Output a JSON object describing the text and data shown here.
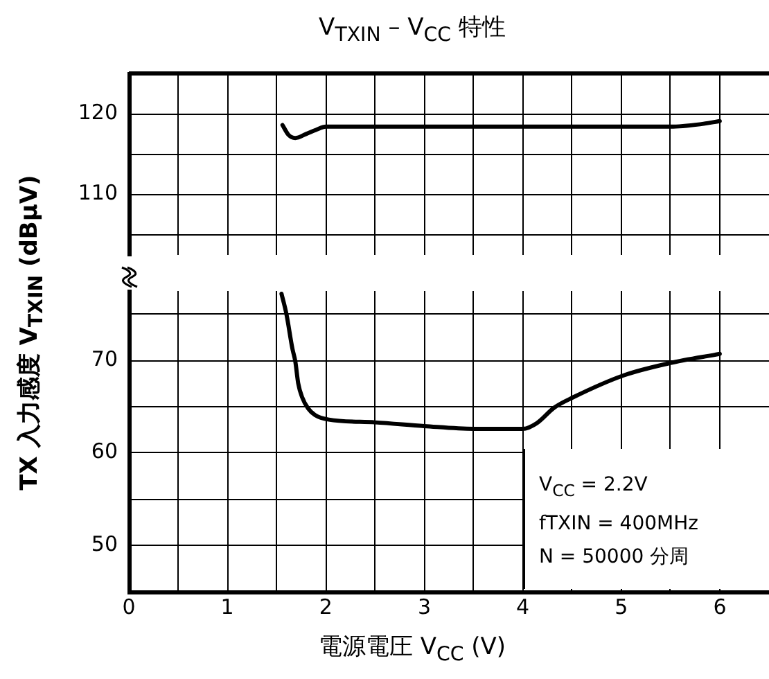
{
  "chart_data": [
    {
      "type": "line",
      "title": "V$_{TXIN}$ – V$_{CC}$ 特性",
      "ylabel": "TX 入力感度 V$_{TXIN}$ (dBμV)",
      "xlim": [
        0,
        6.5
      ],
      "xticks": [
        0,
        {
          "value": 0.5,
          "label": null
        },
        1,
        {
          "value": 1.5,
          "label": null
        },
        2,
        {
          "value": 2.5,
          "label": null
        },
        3,
        {
          "value": 3.5,
          "label": null
        },
        4,
        {
          "value": 4.5,
          "label": null
        },
        5,
        {
          "value": 5.5,
          "label": null
        },
        6
      ],
      "ylim": [
        102.5,
        125
      ],
      "yticks": [
        {
          "value": 105,
          "label": null
        },
        110,
        {
          "value": 115,
          "label": null
        },
        120,
        {
          "value": 125,
          "label": null
        }
      ],
      "tick_labels": "y",
      "grid": true,
      "legend": false,
      "marker": "none",
      "line_style": "solid",
      "series": [
        {
          "color": "#000000",
          "x": [
            1.56,
            1.62,
            1.69,
            1.8,
            1.9,
            2.0,
            2.5,
            3.0,
            3.5,
            4.0,
            4.5,
            5.0,
            5.5,
            5.8,
            6.0
          ],
          "values": [
            118.6,
            117.4,
            117.0,
            117.5,
            118.0,
            118.4,
            118.4,
            118.4,
            118.4,
            118.4,
            118.4,
            118.4,
            118.4,
            118.7,
            119.1
          ]
        }
      ]
    },
    {
      "type": "line",
      "xlabel": "電源電圧 V$_{CC}$ (V)",
      "annotations": [
        "V$_{CC}$ = 2.2V",
        "fTXIN = 400MHz",
        "N = 50000 分周"
      ],
      "xlim": [
        0,
        6.5
      ],
      "xticks": [
        0,
        {
          "value": 0.5,
          "label": null
        },
        1,
        {
          "value": 1.5,
          "label": null
        },
        2,
        {
          "value": 2.5,
          "label": null
        },
        3,
        {
          "value": 3.5,
          "label": null
        },
        4,
        {
          "value": 4.5,
          "label": null
        },
        5,
        {
          "value": 5.5,
          "label": null
        },
        6
      ],
      "ylim": [
        45,
        77.5
      ],
      "yticks": [
        50,
        {
          "value": 55,
          "label": null
        },
        60,
        {
          "value": 65,
          "label": null
        },
        70,
        {
          "value": 75,
          "label": null
        }
      ],
      "grid": true,
      "legend": false,
      "marker": "none",
      "line_style": "solid",
      "series": [
        {
          "color": "#000000",
          "x": [
            1.55,
            1.6,
            1.66,
            1.69,
            1.72,
            1.76,
            1.82,
            1.89,
            2.03,
            2.5,
            3.0,
            3.5,
            4.0,
            4.14,
            4.32,
            4.51,
            5.03,
            5.49,
            6.0
          ],
          "values": [
            77.2,
            75.0,
            71.3,
            69.9,
            67.5,
            66.0,
            64.8,
            64.1,
            63.6,
            63.3,
            62.9,
            62.6,
            62.6,
            63.2,
            64.9,
            66.0,
            68.4,
            69.7,
            70.7
          ]
        }
      ]
    }
  ]
}
